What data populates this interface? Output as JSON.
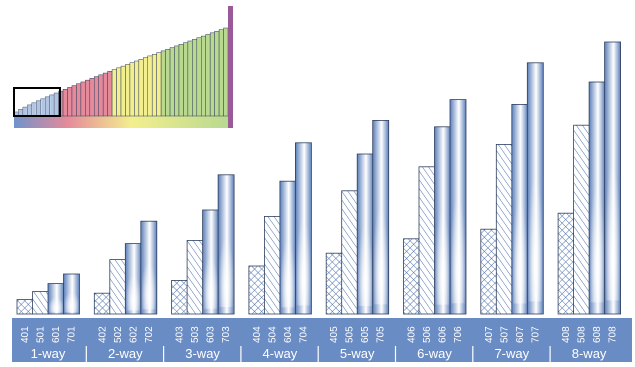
{
  "diagram": {
    "groups": [
      {
        "label": "1-way",
        "bars": [
          {
            "id": "401",
            "value": 9,
            "pattern": "cross"
          },
          {
            "id": "501",
            "value": 14,
            "pattern": "diag"
          },
          {
            "id": "601",
            "value": 19,
            "pattern": "solid"
          },
          {
            "id": "701",
            "value": 25,
            "pattern": "solid"
          }
        ]
      },
      {
        "label": "2-way",
        "bars": [
          {
            "id": "402",
            "value": 13,
            "pattern": "cross"
          },
          {
            "id": "502",
            "value": 34,
            "pattern": "diag"
          },
          {
            "id": "602",
            "value": 44,
            "pattern": "solid"
          },
          {
            "id": "702",
            "value": 58,
            "pattern": "solid"
          }
        ]
      },
      {
        "label": "3-way",
        "bars": [
          {
            "id": "403",
            "value": 21,
            "pattern": "cross"
          },
          {
            "id": "503",
            "value": 46,
            "pattern": "diag"
          },
          {
            "id": "603",
            "value": 65,
            "pattern": "solid"
          },
          {
            "id": "703",
            "value": 87,
            "pattern": "solid"
          }
        ]
      },
      {
        "label": "4-way",
        "bars": [
          {
            "id": "404",
            "value": 30,
            "pattern": "cross"
          },
          {
            "id": "504",
            "value": 61,
            "pattern": "diag"
          },
          {
            "id": "604",
            "value": 83,
            "pattern": "solid"
          },
          {
            "id": "704",
            "value": 107,
            "pattern": "solid"
          }
        ]
      },
      {
        "label": "5-way",
        "bars": [
          {
            "id": "405",
            "value": 38,
            "pattern": "cross"
          },
          {
            "id": "505",
            "value": 77,
            "pattern": "diag"
          },
          {
            "id": "605",
            "value": 100,
            "pattern": "solid"
          },
          {
            "id": "705",
            "value": 121,
            "pattern": "solid"
          }
        ]
      },
      {
        "label": "6-way",
        "bars": [
          {
            "id": "406",
            "value": 47,
            "pattern": "cross"
          },
          {
            "id": "506",
            "value": 92,
            "pattern": "diag"
          },
          {
            "id": "606",
            "value": 117,
            "pattern": "solid"
          },
          {
            "id": "706",
            "value": 134,
            "pattern": "solid"
          }
        ]
      },
      {
        "label": "7-way",
        "bars": [
          {
            "id": "407",
            "value": 53,
            "pattern": "cross"
          },
          {
            "id": "507",
            "value": 106,
            "pattern": "diag"
          },
          {
            "id": "607",
            "value": 131,
            "pattern": "solid"
          },
          {
            "id": "707",
            "value": 157,
            "pattern": "solid"
          }
        ]
      },
      {
        "label": "8-way",
        "bars": [
          {
            "id": "408",
            "value": 63,
            "pattern": "cross"
          },
          {
            "id": "508",
            "value": 118,
            "pattern": "diag"
          },
          {
            "id": "608",
            "value": 145,
            "pattern": "solid"
          },
          {
            "id": "708",
            "value": 170,
            "pattern": "solid"
          }
        ]
      }
    ],
    "thumbnail_bar_count": 48,
    "colors": {
      "bar_dark": "#5b7fba",
      "bar_light": "#ffffff",
      "hatch": "#4f73ad",
      "axis_band": "#6a8cc4",
      "label_text": "#ffffff",
      "highlight_box": "#000000",
      "end_marker": "#9a5a9a",
      "thumb_gradient": [
        "#6f93cc",
        "#e58a9a",
        "#f3ef8e",
        "#b9d98f"
      ]
    }
  }
}
